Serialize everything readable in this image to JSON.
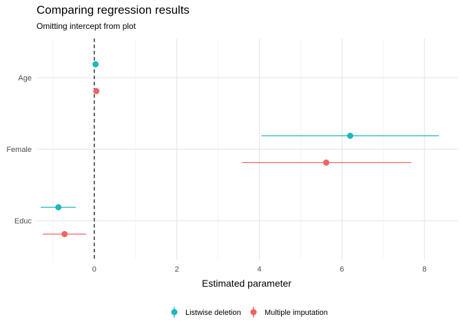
{
  "chart_data": {
    "type": "scatter",
    "title": "Comparing regression results",
    "subtitle": "Omitting intercept from plot",
    "xlabel": "Estimated parameter",
    "ylabel": "",
    "xlim": [
      -1.4,
      8.8
    ],
    "x_ticks": [
      0,
      2,
      4,
      6,
      8
    ],
    "categories": [
      "Age",
      "Female",
      "Educ"
    ],
    "grid": true,
    "reference_line": {
      "x": 0,
      "style": "dashed"
    },
    "legend_position": "bottom",
    "series": [
      {
        "name": "Listwise deletion",
        "color": "#1cb8bf",
        "points": [
          {
            "category": "Age",
            "estimate": 0.03,
            "low": 0.0,
            "high": 0.06
          },
          {
            "category": "Female",
            "estimate": 6.2,
            "low": 4.05,
            "high": 8.35
          },
          {
            "category": "Educ",
            "estimate": -0.87,
            "low": -1.3,
            "high": -0.45
          }
        ]
      },
      {
        "name": "Multiple imputation",
        "color": "#f06460",
        "points": [
          {
            "category": "Age",
            "estimate": 0.05,
            "low": 0.02,
            "high": 0.08
          },
          {
            "category": "Female",
            "estimate": 5.62,
            "low": 3.58,
            "high": 7.68
          },
          {
            "category": "Educ",
            "estimate": -0.72,
            "low": -1.25,
            "high": -0.2
          }
        ]
      }
    ]
  }
}
